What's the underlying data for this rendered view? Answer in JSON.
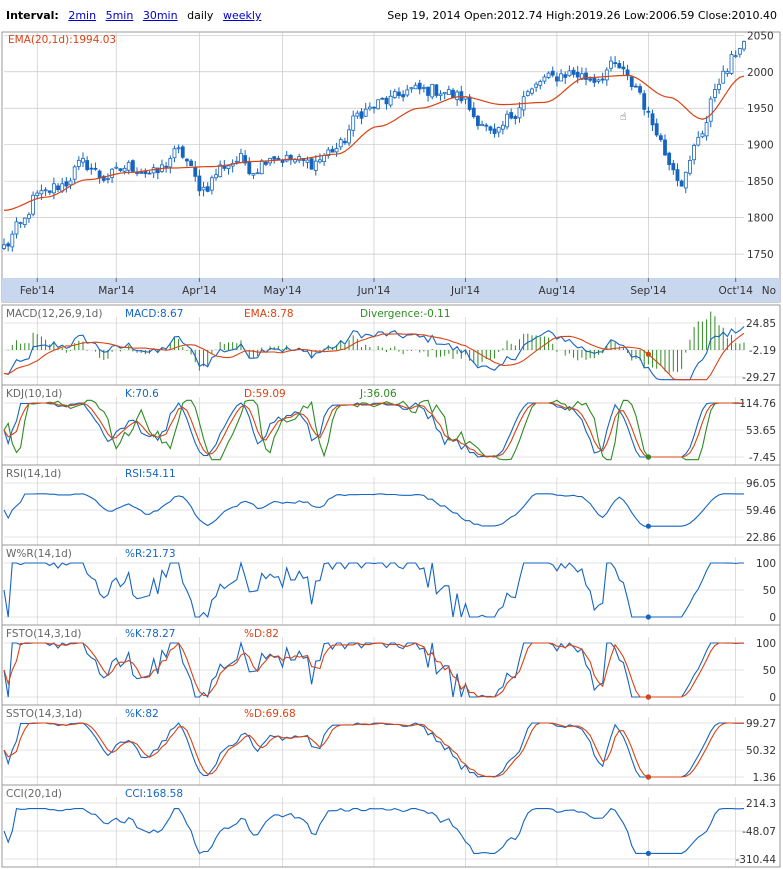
{
  "header": {
    "interval_label": "Interval:",
    "interval_options": [
      "2min",
      "5min",
      "30min",
      "daily",
      "weekly"
    ],
    "selected_interval": "daily",
    "date": "Sep 19, 2014",
    "open_label": "Open:",
    "open": "2012.74",
    "high_label": "High:",
    "high": "2019.26",
    "low_label": "Low:",
    "low": "2006.59",
    "close_label": "Close:",
    "close": "2010.40"
  },
  "colors": {
    "price": "#1565c0",
    "ema": "#d84315",
    "green": "#2e8b22",
    "grid": "#c8c8c8",
    "axis_band": "#c9d7ee",
    "label_gray": "#666666"
  },
  "chart_data": [
    {
      "type": "candlestick",
      "title": "EMA(20,1d):1994.03",
      "ema_label": "EMA(20,1d):1994.03",
      "ylim": [
        1720,
        2060
      ],
      "y_ticks": [
        1750,
        1800,
        1850,
        1900,
        1950,
        2000,
        2050
      ],
      "x_tick_labels": [
        "Feb'14",
        "Mar'14",
        "Apr'14",
        "May'14",
        "Jun'14",
        "Jul'14",
        "Aug'14",
        "Sep'14",
        "Oct'14",
        "No"
      ],
      "close_anchor_days": [
        0,
        4,
        8,
        14,
        19,
        24,
        30,
        36,
        42,
        48,
        53,
        57,
        60,
        64,
        68,
        74,
        80,
        86,
        92,
        98,
        104,
        110,
        114,
        118,
        122,
        126,
        130,
        136,
        142,
        147,
        152,
        156,
        160,
        163,
        168,
        172,
        178
      ],
      "close_anchor_values": [
        1760,
        1790,
        1830,
        1845,
        1875,
        1855,
        1870,
        1860,
        1890,
        1840,
        1872,
        1880,
        1865,
        1885,
        1880,
        1875,
        1895,
        1945,
        1960,
        1975,
        1975,
        1965,
        1935,
        1910,
        1940,
        1970,
        1990,
        1998,
        1990,
        2008,
        1980,
        1930,
        1880,
        1850,
        1920,
        1990,
        2040
      ],
      "ema_anchor_days": [
        0,
        10,
        20,
        30,
        40,
        50,
        60,
        70,
        80,
        90,
        100,
        110,
        120,
        130,
        140,
        150,
        160,
        168,
        178
      ],
      "ema_anchor_values": [
        1810,
        1828,
        1852,
        1862,
        1868,
        1870,
        1877,
        1880,
        1887,
        1925,
        1950,
        1966,
        1955,
        1958,
        1992,
        1995,
        1965,
        1935,
        1994
      ]
    },
    {
      "type": "line",
      "name": "MACD(12,26,9,1d)",
      "values_text": [
        "MACD:8.67",
        "EMA:8.78",
        "Divergence:-0.11"
      ],
      "y_ticks": [
        "24.85",
        "-2.19",
        "-29.27"
      ]
    },
    {
      "type": "line",
      "name": "KDJ(10,1d)",
      "values_text": [
        "K:70.6",
        "D:59.09",
        "J:36.06"
      ],
      "y_ticks": [
        "114.76",
        "53.65",
        "-7.45"
      ]
    },
    {
      "type": "line",
      "name": "RSI(14,1d)",
      "values_text": [
        "RSI:54.11"
      ],
      "y_ticks": [
        "96.05",
        "59.46",
        "22.86"
      ]
    },
    {
      "type": "line",
      "name": "W%R(14,1d)",
      "values_text": [
        "%R:21.73"
      ],
      "y_ticks": [
        "100",
        "50",
        "0"
      ]
    },
    {
      "type": "line",
      "name": "FSTO(14,3,1d)",
      "values_text": [
        "%K:78.27",
        "%D:82"
      ],
      "y_ticks": [
        "100",
        "50",
        "0"
      ]
    },
    {
      "type": "line",
      "name": "SSTO(14,3,1d)",
      "values_text": [
        "%K:82",
        "%D:69.68"
      ],
      "y_ticks": [
        "99.27",
        "50.32",
        "1.36"
      ]
    },
    {
      "type": "line",
      "name": "CCI(20,1d)",
      "values_text": [
        "CCI:168.58"
      ],
      "y_ticks": [
        "214.3",
        "-48.07",
        "-310.44"
      ]
    }
  ]
}
